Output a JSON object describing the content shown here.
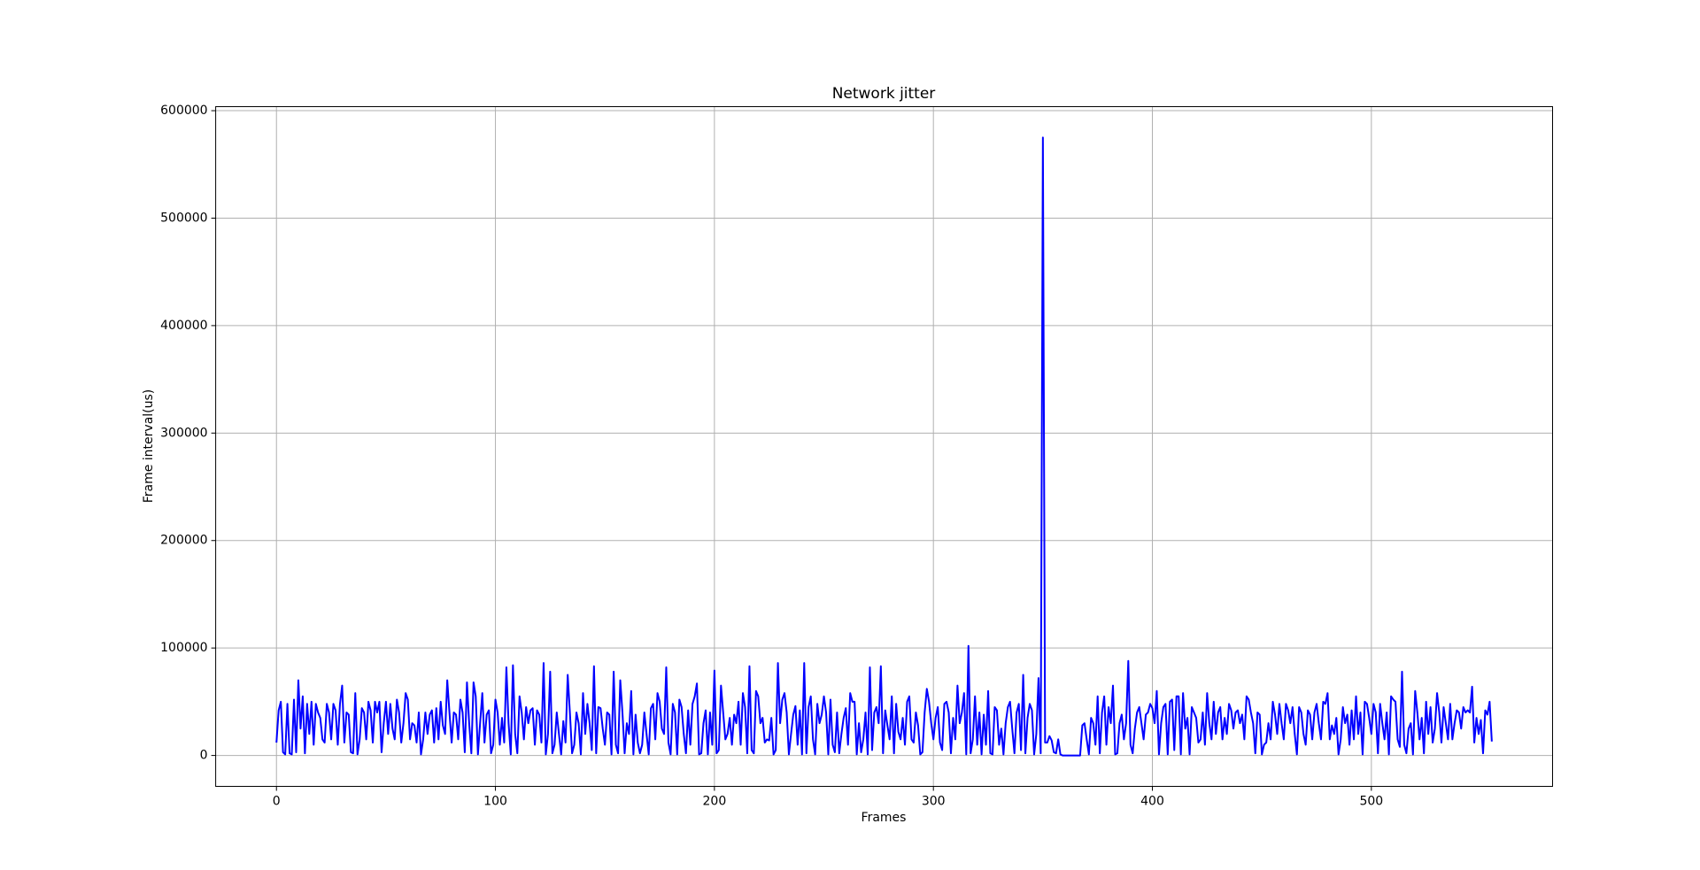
{
  "chart_data": {
    "type": "line",
    "title": "Network jitter",
    "x_label": "Frames",
    "y_label": "Frame interval(us)",
    "x": [
      0,
      1,
      2,
      3,
      4,
      5,
      6,
      7,
      8,
      9,
      10,
      11,
      12,
      13,
      14,
      15,
      16,
      17,
      18,
      19,
      20,
      21,
      22,
      23,
      24,
      25,
      26,
      27,
      28,
      29,
      30,
      31,
      32,
      33,
      34,
      35,
      36,
      37,
      38,
      39,
      40,
      41,
      42,
      43,
      44,
      45,
      46,
      47,
      48,
      49,
      50,
      51,
      52,
      53,
      54,
      55,
      56,
      57,
      58,
      59,
      60,
      61,
      62,
      63,
      64,
      65,
      66,
      67,
      68,
      69,
      70,
      71,
      72,
      73,
      74,
      75,
      76,
      77,
      78,
      79,
      80,
      81,
      82,
      83,
      84,
      85,
      86,
      87,
      88,
      89,
      90,
      91,
      92,
      93,
      94,
      95,
      96,
      97,
      98,
      99,
      100,
      101,
      102,
      103,
      104,
      105,
      106,
      107,
      108,
      109,
      110,
      111,
      112,
      113,
      114,
      115,
      116,
      117,
      118,
      119,
      120,
      121,
      122,
      123,
      124,
      125,
      126,
      127,
      128,
      129,
      130,
      131,
      132,
      133,
      134,
      135,
      136,
      137,
      138,
      139,
      140,
      141,
      142,
      143,
      144,
      145,
      146,
      147,
      148,
      149,
      150,
      151,
      152,
      153,
      154,
      155,
      156,
      157,
      158,
      159,
      160,
      161,
      162,
      163,
      164,
      165,
      166,
      167,
      168,
      169,
      170,
      171,
      172,
      173,
      174,
      175,
      176,
      177,
      178,
      179,
      180,
      181,
      182,
      183,
      184,
      185,
      186,
      187,
      188,
      189,
      190,
      191,
      192,
      193,
      194,
      195,
      196,
      197,
      198,
      199,
      200,
      201,
      202,
      203,
      204,
      205,
      206,
      207,
      208,
      209,
      210,
      211,
      212,
      213,
      214,
      215,
      216,
      217,
      218,
      219,
      220,
      221,
      222,
      223,
      224,
      225,
      226,
      227,
      228,
      229,
      230,
      231,
      232,
      233,
      234,
      235,
      236,
      237,
      238,
      239,
      240,
      241,
      242,
      243,
      244,
      245,
      246,
      247,
      248,
      249,
      250,
      251,
      252,
      253,
      254,
      255,
      256,
      257,
      258,
      259,
      260,
      261,
      262,
      263,
      264,
      265,
      266,
      267,
      268,
      269,
      270,
      271,
      272,
      273,
      274,
      275,
      276,
      277,
      278,
      279,
      280,
      281,
      282,
      283,
      284,
      285,
      286,
      287,
      288,
      289,
      290,
      291,
      292,
      293,
      294,
      295,
      296,
      297,
      298,
      299,
      300,
      301,
      302,
      303,
      304,
      305,
      306,
      307,
      308,
      309,
      310,
      311,
      312,
      313,
      314,
      315,
      316,
      317,
      318,
      319,
      320,
      321,
      322,
      323,
      324,
      325,
      326,
      327,
      328,
      329,
      330,
      331,
      332,
      333,
      334,
      335,
      336,
      337,
      338,
      339,
      340,
      341,
      342,
      343,
      344,
      345,
      346,
      347,
      348,
      349,
      350,
      351,
      352,
      353,
      354,
      355,
      356,
      357,
      358,
      359,
      360,
      361,
      362,
      363,
      364,
      365,
      366,
      367,
      368,
      369,
      370,
      371,
      372,
      373,
      374,
      375,
      376,
      377,
      378,
      379,
      380,
      381,
      382,
      383,
      384,
      385,
      386,
      387,
      388,
      389,
      390,
      391,
      392,
      393,
      394,
      395,
      396,
      397,
      398,
      399,
      400,
      401,
      402,
      403,
      404,
      405,
      406,
      407,
      408,
      409,
      410,
      411,
      412,
      413,
      414,
      415,
      416,
      417,
      418,
      419,
      420,
      421,
      422,
      423,
      424,
      425,
      426,
      427,
      428,
      429,
      430,
      431,
      432,
      433,
      434,
      435,
      436,
      437,
      438,
      439,
      440,
      441,
      442,
      443,
      444,
      445,
      446,
      447,
      448,
      449,
      450,
      451,
      452,
      453,
      454,
      455,
      456,
      457,
      458,
      459,
      460,
      461,
      462,
      463,
      464,
      465,
      466,
      467,
      468,
      469,
      470,
      471,
      472,
      473,
      474,
      475,
      476,
      477,
      478,
      479,
      480,
      481,
      482,
      483,
      484,
      485,
      486,
      487,
      488,
      489,
      490,
      491,
      492,
      493,
      494,
      495,
      496,
      497,
      498,
      499,
      500,
      501,
      502,
      503,
      504,
      505,
      506,
      507,
      508,
      509,
      510,
      511,
      512,
      513,
      514,
      515,
      516,
      517,
      518,
      519,
      520,
      521,
      522,
      523,
      524,
      525,
      526,
      527,
      528,
      529,
      530,
      531,
      532,
      533,
      534,
      535,
      536,
      537,
      538,
      539,
      540,
      541,
      542,
      543,
      544,
      545,
      546,
      547,
      548,
      549,
      550,
      551,
      552,
      553,
      554,
      555
    ],
    "series": [
      {
        "color": "#0000ff",
        "values": [
          12000,
          42000,
          50000,
          3000,
          1000,
          48000,
          2000,
          1000,
          52000,
          3000,
          70000,
          25000,
          55000,
          2000,
          48000,
          20000,
          50000,
          10000,
          48000,
          40000,
          35000,
          15000,
          12000,
          48000,
          40000,
          15000,
          48000,
          42000,
          10000,
          48000,
          65000,
          12000,
          40000,
          38000,
          3000,
          2000,
          58000,
          1000,
          15000,
          44000,
          40000,
          15000,
          50000,
          42000,
          12000,
          50000,
          40000,
          50000,
          3000,
          30000,
          50000,
          20000,
          48000,
          25000,
          15000,
          52000,
          40000,
          12000,
          30000,
          58000,
          52000,
          15000,
          30000,
          28000,
          12000,
          40000,
          1000,
          15000,
          40000,
          20000,
          38000,
          42000,
          12000,
          44000,
          15000,
          50000,
          28000,
          20000,
          70000,
          40000,
          12000,
          40000,
          38000,
          15000,
          52000,
          40000,
          3000,
          68000,
          30000,
          2000,
          68000,
          55000,
          1000,
          30000,
          58000,
          12000,
          38000,
          42000,
          2000,
          10000,
          52000,
          40000,
          10000,
          35000,
          12000,
          82000,
          30000,
          1000,
          84000,
          20000,
          2000,
          55000,
          40000,
          15000,
          45000,
          30000,
          42000,
          44000,
          10000,
          42000,
          38000,
          12000,
          86000,
          1000,
          20000,
          78000,
          2000,
          10000,
          40000,
          20000,
          1000,
          32000,
          12000,
          75000,
          40000,
          2000,
          10000,
          40000,
          30000,
          1000,
          58000,
          20000,
          48000,
          30000,
          5000,
          83000,
          2000,
          45000,
          44000,
          25000,
          10000,
          40000,
          38000,
          1000,
          78000,
          10000,
          2000,
          70000,
          40000,
          2000,
          30000,
          20000,
          60000,
          1000,
          38000,
          12000,
          2000,
          10000,
          40000,
          20000,
          1000,
          44000,
          48000,
          15000,
          58000,
          50000,
          25000,
          20000,
          82000,
          12000,
          1000,
          48000,
          40000,
          1000,
          52000,
          45000,
          20000,
          2000,
          42000,
          10000,
          48000,
          55000,
          67000,
          1000,
          2000,
          30000,
          42000,
          1000,
          40000,
          10000,
          79000,
          2000,
          5000,
          65000,
          40000,
          15000,
          20000,
          35000,
          10000,
          38000,
          30000,
          50000,
          10000,
          58000,
          45000,
          2000,
          83000,
          5000,
          2000,
          60000,
          55000,
          30000,
          35000,
          12000,
          15000,
          14000,
          35000,
          1000,
          5000,
          86000,
          30000,
          52000,
          58000,
          40000,
          1000,
          20000,
          38000,
          46000,
          10000,
          42000,
          1000,
          86000,
          2000,
          45000,
          55000,
          15000,
          1000,
          48000,
          30000,
          38000,
          55000,
          40000,
          1000,
          52000,
          10000,
          3000,
          40000,
          2000,
          20000,
          35000,
          44000,
          10000,
          58000,
          50000,
          50000,
          1000,
          30000,
          3000,
          15000,
          40000,
          1000,
          82000,
          5000,
          40000,
          45000,
          30000,
          83000,
          2000,
          42000,
          28000,
          15000,
          55000,
          2000,
          48000,
          22000,
          15000,
          35000,
          10000,
          50000,
          55000,
          15000,
          12000,
          40000,
          28000,
          1000,
          3000,
          40000,
          62000,
          50000,
          30000,
          15000,
          35000,
          45000,
          12000,
          5000,
          48000,
          50000,
          40000,
          2000,
          35000,
          15000,
          65000,
          30000,
          40000,
          58000,
          1000,
          102000,
          2000,
          15000,
          55000,
          10000,
          40000,
          1000,
          38000,
          10000,
          60000,
          2000,
          1000,
          45000,
          42000,
          10000,
          25000,
          1000,
          30000,
          45000,
          50000,
          25000,
          2000,
          40000,
          48000,
          5000,
          75000,
          2000,
          35000,
          48000,
          42000,
          1000,
          20000,
          72000,
          2000,
          575000,
          12000,
          12000,
          18000,
          14000,
          3000,
          2000,
          15000,
          1000,
          0,
          0,
          0,
          0,
          0,
          0,
          0,
          0,
          0,
          28000,
          30000,
          15000,
          1000,
          35000,
          30000,
          10000,
          55000,
          2000,
          40000,
          55000,
          10000,
          45000,
          30000,
          65000,
          1000,
          2000,
          30000,
          38000,
          15000,
          30000,
          88000,
          10000,
          2000,
          25000,
          40000,
          45000,
          30000,
          15000,
          38000,
          40000,
          48000,
          44000,
          30000,
          60000,
          1000,
          30000,
          45000,
          48000,
          1000,
          50000,
          52000,
          5000,
          55000,
          55000,
          1000,
          58000,
          25000,
          35000,
          1000,
          45000,
          40000,
          35000,
          12000,
          15000,
          40000,
          10000,
          58000,
          30000,
          15000,
          50000,
          20000,
          40000,
          45000,
          15000,
          35000,
          20000,
          48000,
          42000,
          25000,
          40000,
          42000,
          30000,
          38000,
          15000,
          55000,
          52000,
          40000,
          30000,
          2000,
          40000,
          38000,
          1000,
          10000,
          12000,
          30000,
          15000,
          50000,
          38000,
          20000,
          48000,
          30000,
          15000,
          48000,
          42000,
          30000,
          45000,
          20000,
          1000,
          45000,
          40000,
          20000,
          10000,
          42000,
          38000,
          15000,
          40000,
          48000,
          30000,
          15000,
          50000,
          48000,
          58000,
          15000,
          28000,
          20000,
          35000,
          1000,
          15000,
          45000,
          30000,
          38000,
          10000,
          42000,
          15000,
          55000,
          20000,
          40000,
          1000,
          50000,
          48000,
          35000,
          20000,
          48000,
          40000,
          2000,
          48000,
          30000,
          15000,
          40000,
          1000,
          55000,
          52000,
          50000,
          15000,
          8000,
          78000,
          10000,
          2000,
          25000,
          30000,
          1000,
          60000,
          40000,
          15000,
          35000,
          2000,
          50000,
          20000,
          45000,
          12000,
          25000,
          58000,
          40000,
          12000,
          45000,
          30000,
          15000,
          48000,
          15000,
          30000,
          42000,
          40000,
          25000,
          45000,
          40000,
          42000,
          40000,
          64000,
          12000,
          35000,
          20000,
          33000,
          2000,
          42000,
          38000,
          50000,
          13000
        ]
      }
    ],
    "xlim": [
      -27.75,
      582.75
    ],
    "xticks": [
      0,
      100,
      200,
      300,
      400,
      500
    ],
    "ylim": [
      -28750,
      603750
    ],
    "yticks": [
      0,
      100000,
      200000,
      300000,
      400000,
      500000,
      600000
    ],
    "grid": true
  }
}
